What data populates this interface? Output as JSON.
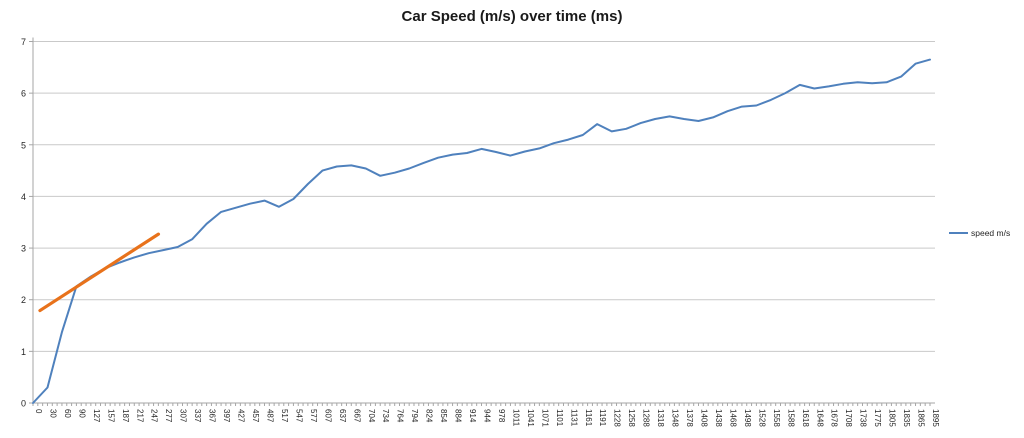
{
  "chart_data": {
    "type": "line",
    "title": "Car Speed (m/s) over time (ms)",
    "xlabel": "",
    "ylabel": "",
    "ylim": [
      0,
      7
    ],
    "yticks": [
      0,
      1,
      2,
      3,
      4,
      5,
      6,
      7
    ],
    "grid": true,
    "legend_position": "right",
    "x_minor_ticks_per_label": 3,
    "categories": [
      0,
      30,
      60,
      90,
      127,
      157,
      187,
      217,
      247,
      277,
      307,
      337,
      367,
      397,
      427,
      457,
      487,
      517,
      547,
      577,
      607,
      637,
      667,
      704,
      734,
      764,
      794,
      824,
      854,
      884,
      914,
      944,
      978,
      1011,
      1041,
      1071,
      1101,
      1131,
      1161,
      1191,
      1228,
      1258,
      1288,
      1318,
      1348,
      1378,
      1408,
      1438,
      1468,
      1498,
      1528,
      1558,
      1588,
      1618,
      1648,
      1678,
      1708,
      1738,
      1775,
      1805,
      1835,
      1865,
      1895
    ],
    "series": [
      {
        "name": "speed m/s",
        "color": "#4F81BD",
        "values": [
          0.0,
          0.3,
          1.37,
          2.26,
          2.45,
          2.61,
          2.72,
          2.82,
          2.9,
          2.96,
          3.02,
          3.17,
          3.47,
          3.7,
          3.78,
          3.86,
          3.92,
          3.8,
          3.95,
          4.24,
          4.5,
          4.58,
          4.6,
          4.54,
          4.4,
          4.46,
          4.54,
          4.65,
          4.75,
          4.81,
          4.84,
          4.92,
          4.86,
          4.79,
          4.87,
          4.93,
          5.03,
          5.1,
          5.19,
          5.4,
          5.26,
          5.31,
          5.42,
          5.5,
          5.55,
          5.5,
          5.46,
          5.53,
          5.65,
          5.74,
          5.76,
          5.87,
          6.0,
          6.16,
          6.09,
          6.13,
          6.18,
          6.21,
          6.19,
          6.21,
          6.32,
          6.57,
          6.65
        ]
      }
    ],
    "trendline": {
      "name": "trendline",
      "color": "#E8721B",
      "start": {
        "category_index": 0.48,
        "value": 1.79
      },
      "end": {
        "category_index": 8.67,
        "value": 3.27
      }
    },
    "colors": {
      "background": "#FFFFFF",
      "gridline": "#C9C9C9",
      "axis": "#A6A6A6",
      "tick": "#A6A6A6",
      "tick_label": "#262626",
      "title_text": "#1A1A1A"
    }
  }
}
